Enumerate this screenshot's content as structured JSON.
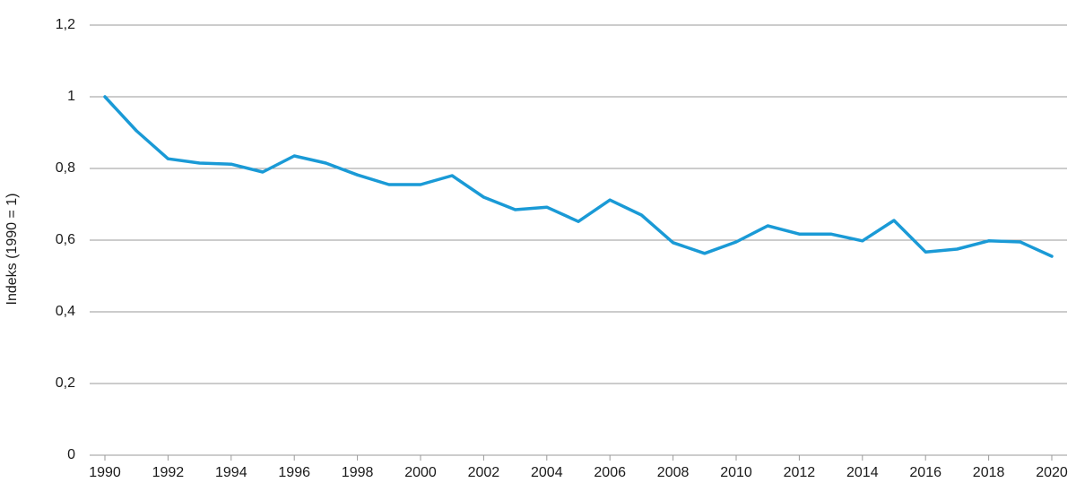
{
  "chart_data": {
    "type": "line",
    "ylabel": "Indeks (1990 = 1)",
    "xlabel": "",
    "ylim": [
      0,
      1.2
    ],
    "grid": true,
    "yticks": [
      {
        "value": 0,
        "label": "0"
      },
      {
        "value": 0.2,
        "label": "0,2"
      },
      {
        "value": 0.4,
        "label": "0,4"
      },
      {
        "value": 0.6,
        "label": "0,6"
      },
      {
        "value": 0.8,
        "label": "0,8"
      },
      {
        "value": 1.0,
        "label": "1"
      },
      {
        "value": 1.2,
        "label": "1,2"
      }
    ],
    "xticks": [
      "1990",
      "1992",
      "1994",
      "1996",
      "1998",
      "2000",
      "2002",
      "2004",
      "2006",
      "2008",
      "2010",
      "2012",
      "2014",
      "2016",
      "2018",
      "2020"
    ],
    "x": [
      1990,
      1991,
      1992,
      1993,
      1994,
      1995,
      1996,
      1997,
      1998,
      1999,
      2000,
      2001,
      2002,
      2003,
      2004,
      2005,
      2006,
      2007,
      2008,
      2009,
      2010,
      2011,
      2012,
      2013,
      2014,
      2015,
      2016,
      2017,
      2018,
      2019,
      2020
    ],
    "series": [
      {
        "color": "#1a9ad6",
        "values": [
          1.0,
          0.905,
          0.827,
          0.815,
          0.812,
          0.79,
          0.835,
          0.815,
          0.782,
          0.755,
          0.755,
          0.78,
          0.72,
          0.685,
          0.692,
          0.652,
          0.712,
          0.67,
          0.593,
          0.563,
          0.595,
          0.64,
          0.617,
          0.617,
          0.598,
          0.655,
          0.567,
          0.575,
          0.598,
          0.595,
          0.555
        ]
      }
    ]
  }
}
